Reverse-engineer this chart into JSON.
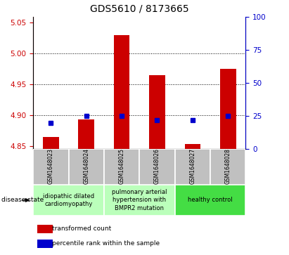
{
  "title": "GDS5610 / 8173665",
  "samples": [
    "GSM1648023",
    "GSM1648024",
    "GSM1648025",
    "GSM1648026",
    "GSM1648027",
    "GSM1648028"
  ],
  "transformed_count": [
    4.865,
    4.893,
    5.03,
    4.965,
    4.853,
    4.975
  ],
  "percentile_rank": [
    20,
    25,
    25,
    22,
    22,
    25
  ],
  "ylim_left": [
    4.845,
    5.06
  ],
  "ylim_right": [
    0,
    100
  ],
  "yticks_left": [
    4.85,
    4.9,
    4.95,
    5.0,
    5.05
  ],
  "yticks_right": [
    0,
    25,
    50,
    75,
    100
  ],
  "bar_color": "#cc0000",
  "dot_color": "#0000cc",
  "bar_bottom": 4.845,
  "groups": [
    {
      "indices": [
        0,
        1
      ],
      "label": "idiopathic dilated\ncardiomyopathy",
      "color": "#bbffbb"
    },
    {
      "indices": [
        2,
        3
      ],
      "label": "pulmonary arterial\nhypertension with\nBMPR2 mutation",
      "color": "#bbffbb"
    },
    {
      "indices": [
        4,
        5
      ],
      "label": "healthy control",
      "color": "#44dd44"
    }
  ],
  "legend_bar_label": "transformed count",
  "legend_dot_label": "percentile rank within the sample",
  "disease_state_label": "disease state",
  "left_axis_color": "#cc0000",
  "right_axis_color": "#0000cc",
  "title_fontsize": 10,
  "tick_fontsize": 7.5,
  "sample_fontsize": 5.5,
  "group_fontsize": 6,
  "legend_fontsize": 6.5
}
